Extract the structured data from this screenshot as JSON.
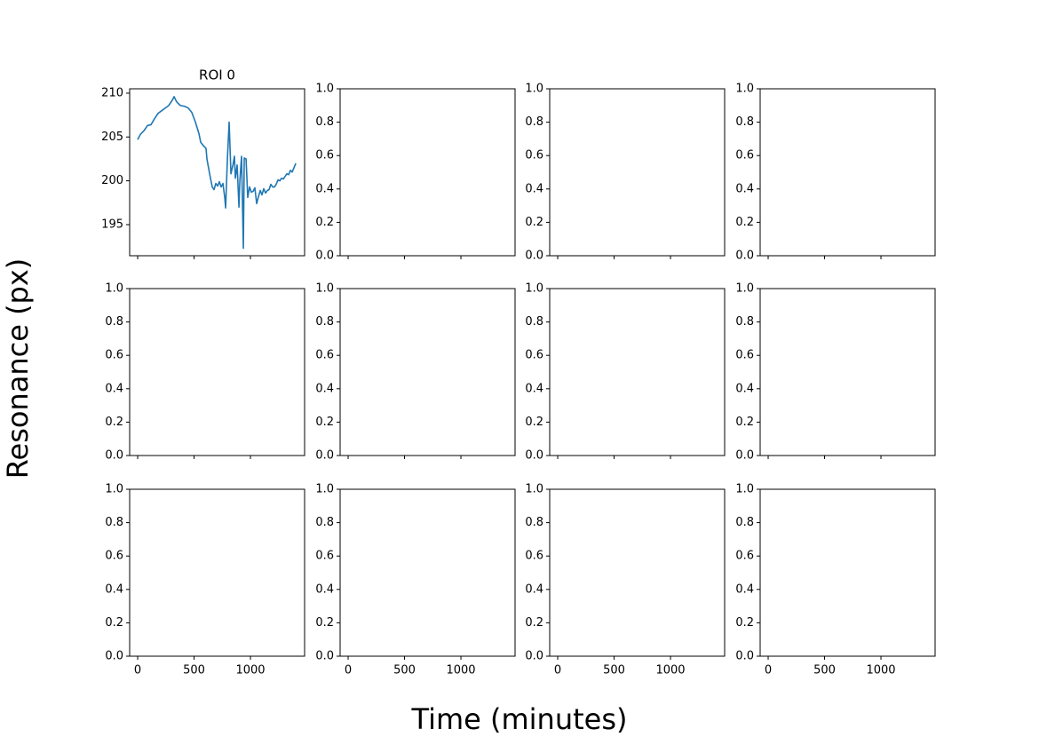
{
  "figure": {
    "xlabel": "Time (minutes)",
    "ylabel": "Resonance (px)"
  },
  "chart_data": [
    {
      "type": "line",
      "title": "ROI 0",
      "color": "#1f77b4",
      "x": [
        0,
        24,
        55,
        87,
        118,
        150,
        181,
        213,
        244,
        276,
        307,
        323,
        346,
        378,
        417,
        449,
        480,
        512,
        543,
        559,
        583,
        606,
        614,
        638,
        661,
        677,
        693,
        709,
        724,
        740,
        756,
        772,
        780,
        795,
        811,
        827,
        843,
        858,
        866,
        882,
        898,
        906,
        921,
        937,
        945,
        961,
        976,
        992,
        1008,
        1024,
        1039,
        1055,
        1071,
        1087,
        1102,
        1118,
        1134,
        1150,
        1165,
        1181,
        1197,
        1213,
        1228,
        1244,
        1260,
        1276,
        1291,
        1307,
        1323,
        1339,
        1354,
        1370,
        1386,
        1402
      ],
      "values": [
        204.7,
        205.3,
        205.7,
        206.3,
        206.4,
        207.1,
        207.7,
        208.0,
        208.3,
        208.6,
        209.2,
        209.6,
        209.0,
        208.6,
        208.5,
        208.3,
        207.8,
        206.7,
        205.4,
        204.4,
        204.0,
        203.7,
        202.5,
        200.8,
        199.3,
        199.0,
        199.7,
        199.4,
        199.9,
        199.3,
        199.7,
        198.1,
        196.9,
        202.3,
        206.7,
        200.8,
        201.7,
        202.8,
        200.3,
        201.8,
        197.0,
        200.0,
        202.8,
        192.3,
        202.6,
        202.5,
        198.1,
        199.3,
        198.7,
        198.8,
        199.2,
        197.4,
        198.2,
        198.9,
        198.4,
        199.1,
        198.6,
        198.9,
        199.0,
        199.6,
        199.3,
        199.3,
        199.6,
        200.1,
        200.0,
        200.3,
        200.2,
        200.5,
        200.8,
        200.7,
        201.2,
        201.0,
        201.5,
        202.0
      ],
      "xlim": [
        -71,
        1480
      ],
      "xticks": [
        0,
        500,
        1000
      ],
      "ylim": [
        191.45,
        210.5
      ],
      "yticks": [
        195,
        200,
        205,
        210
      ]
    },
    {
      "type": "line",
      "xlim": [
        -71,
        1480
      ],
      "xticks": [
        0,
        500,
        1000
      ],
      "ylim": [
        0,
        1
      ],
      "yticks": [
        {
          "value": 0,
          "label": "0.0"
        },
        0.2,
        0.4,
        0.6,
        0.8,
        {
          "value": 1,
          "label": "1.0"
        }
      ]
    },
    {
      "type": "line",
      "xlim": [
        -71,
        1480
      ],
      "xticks": [
        0,
        500,
        1000
      ],
      "ylim": [
        0,
        1
      ],
      "yticks": [
        {
          "value": 0,
          "label": "0.0"
        },
        0.2,
        0.4,
        0.6,
        0.8,
        {
          "value": 1,
          "label": "1.0"
        }
      ]
    },
    {
      "type": "line",
      "xlim": [
        -71,
        1480
      ],
      "xticks": [
        0,
        500,
        1000
      ],
      "ylim": [
        0,
        1
      ],
      "yticks": [
        {
          "value": 0,
          "label": "0.0"
        },
        0.2,
        0.4,
        0.6,
        0.8,
        {
          "value": 1,
          "label": "1.0"
        }
      ]
    },
    {
      "type": "line",
      "xlim": [
        -71,
        1480
      ],
      "xticks": [
        0,
        500,
        1000
      ],
      "ylim": [
        0,
        1
      ],
      "yticks": [
        {
          "value": 0,
          "label": "0.0"
        },
        0.2,
        0.4,
        0.6,
        0.8,
        {
          "value": 1,
          "label": "1.0"
        }
      ]
    },
    {
      "type": "line",
      "xlim": [
        -71,
        1480
      ],
      "xticks": [
        0,
        500,
        1000
      ],
      "ylim": [
        0,
        1
      ],
      "yticks": [
        {
          "value": 0,
          "label": "0.0"
        },
        0.2,
        0.4,
        0.6,
        0.8,
        {
          "value": 1,
          "label": "1.0"
        }
      ]
    },
    {
      "type": "line",
      "xlim": [
        -71,
        1480
      ],
      "xticks": [
        0,
        500,
        1000
      ],
      "ylim": [
        0,
        1
      ],
      "yticks": [
        {
          "value": 0,
          "label": "0.0"
        },
        0.2,
        0.4,
        0.6,
        0.8,
        {
          "value": 1,
          "label": "1.0"
        }
      ]
    },
    {
      "type": "line",
      "xlim": [
        -71,
        1480
      ],
      "xticks": [
        0,
        500,
        1000
      ],
      "ylim": [
        0,
        1
      ],
      "yticks": [
        {
          "value": 0,
          "label": "0.0"
        },
        0.2,
        0.4,
        0.6,
        0.8,
        {
          "value": 1,
          "label": "1.0"
        }
      ]
    },
    {
      "type": "line",
      "xlim": [
        -71,
        1480
      ],
      "xticks": [
        0,
        500,
        1000
      ],
      "ylim": [
        0,
        1
      ],
      "yticks": [
        {
          "value": 0,
          "label": "0.0"
        },
        0.2,
        0.4,
        0.6,
        0.8,
        {
          "value": 1,
          "label": "1.0"
        }
      ]
    },
    {
      "type": "line",
      "xlim": [
        -71,
        1480
      ],
      "xticks": [
        0,
        500,
        1000
      ],
      "ylim": [
        0,
        1
      ],
      "yticks": [
        {
          "value": 0,
          "label": "0.0"
        },
        0.2,
        0.4,
        0.6,
        0.8,
        {
          "value": 1,
          "label": "1.0"
        }
      ]
    },
    {
      "type": "line",
      "xlim": [
        -71,
        1480
      ],
      "xticks": [
        0,
        500,
        1000
      ],
      "ylim": [
        0,
        1
      ],
      "yticks": [
        {
          "value": 0,
          "label": "0.0"
        },
        0.2,
        0.4,
        0.6,
        0.8,
        {
          "value": 1,
          "label": "1.0"
        }
      ]
    },
    {
      "type": "line",
      "xlim": [
        -71,
        1480
      ],
      "xticks": [
        0,
        500,
        1000
      ],
      "ylim": [
        0,
        1
      ],
      "yticks": [
        {
          "value": 0,
          "label": "0.0"
        },
        0.2,
        0.4,
        0.6,
        0.8,
        {
          "value": 1,
          "label": "1.0"
        }
      ]
    }
  ]
}
